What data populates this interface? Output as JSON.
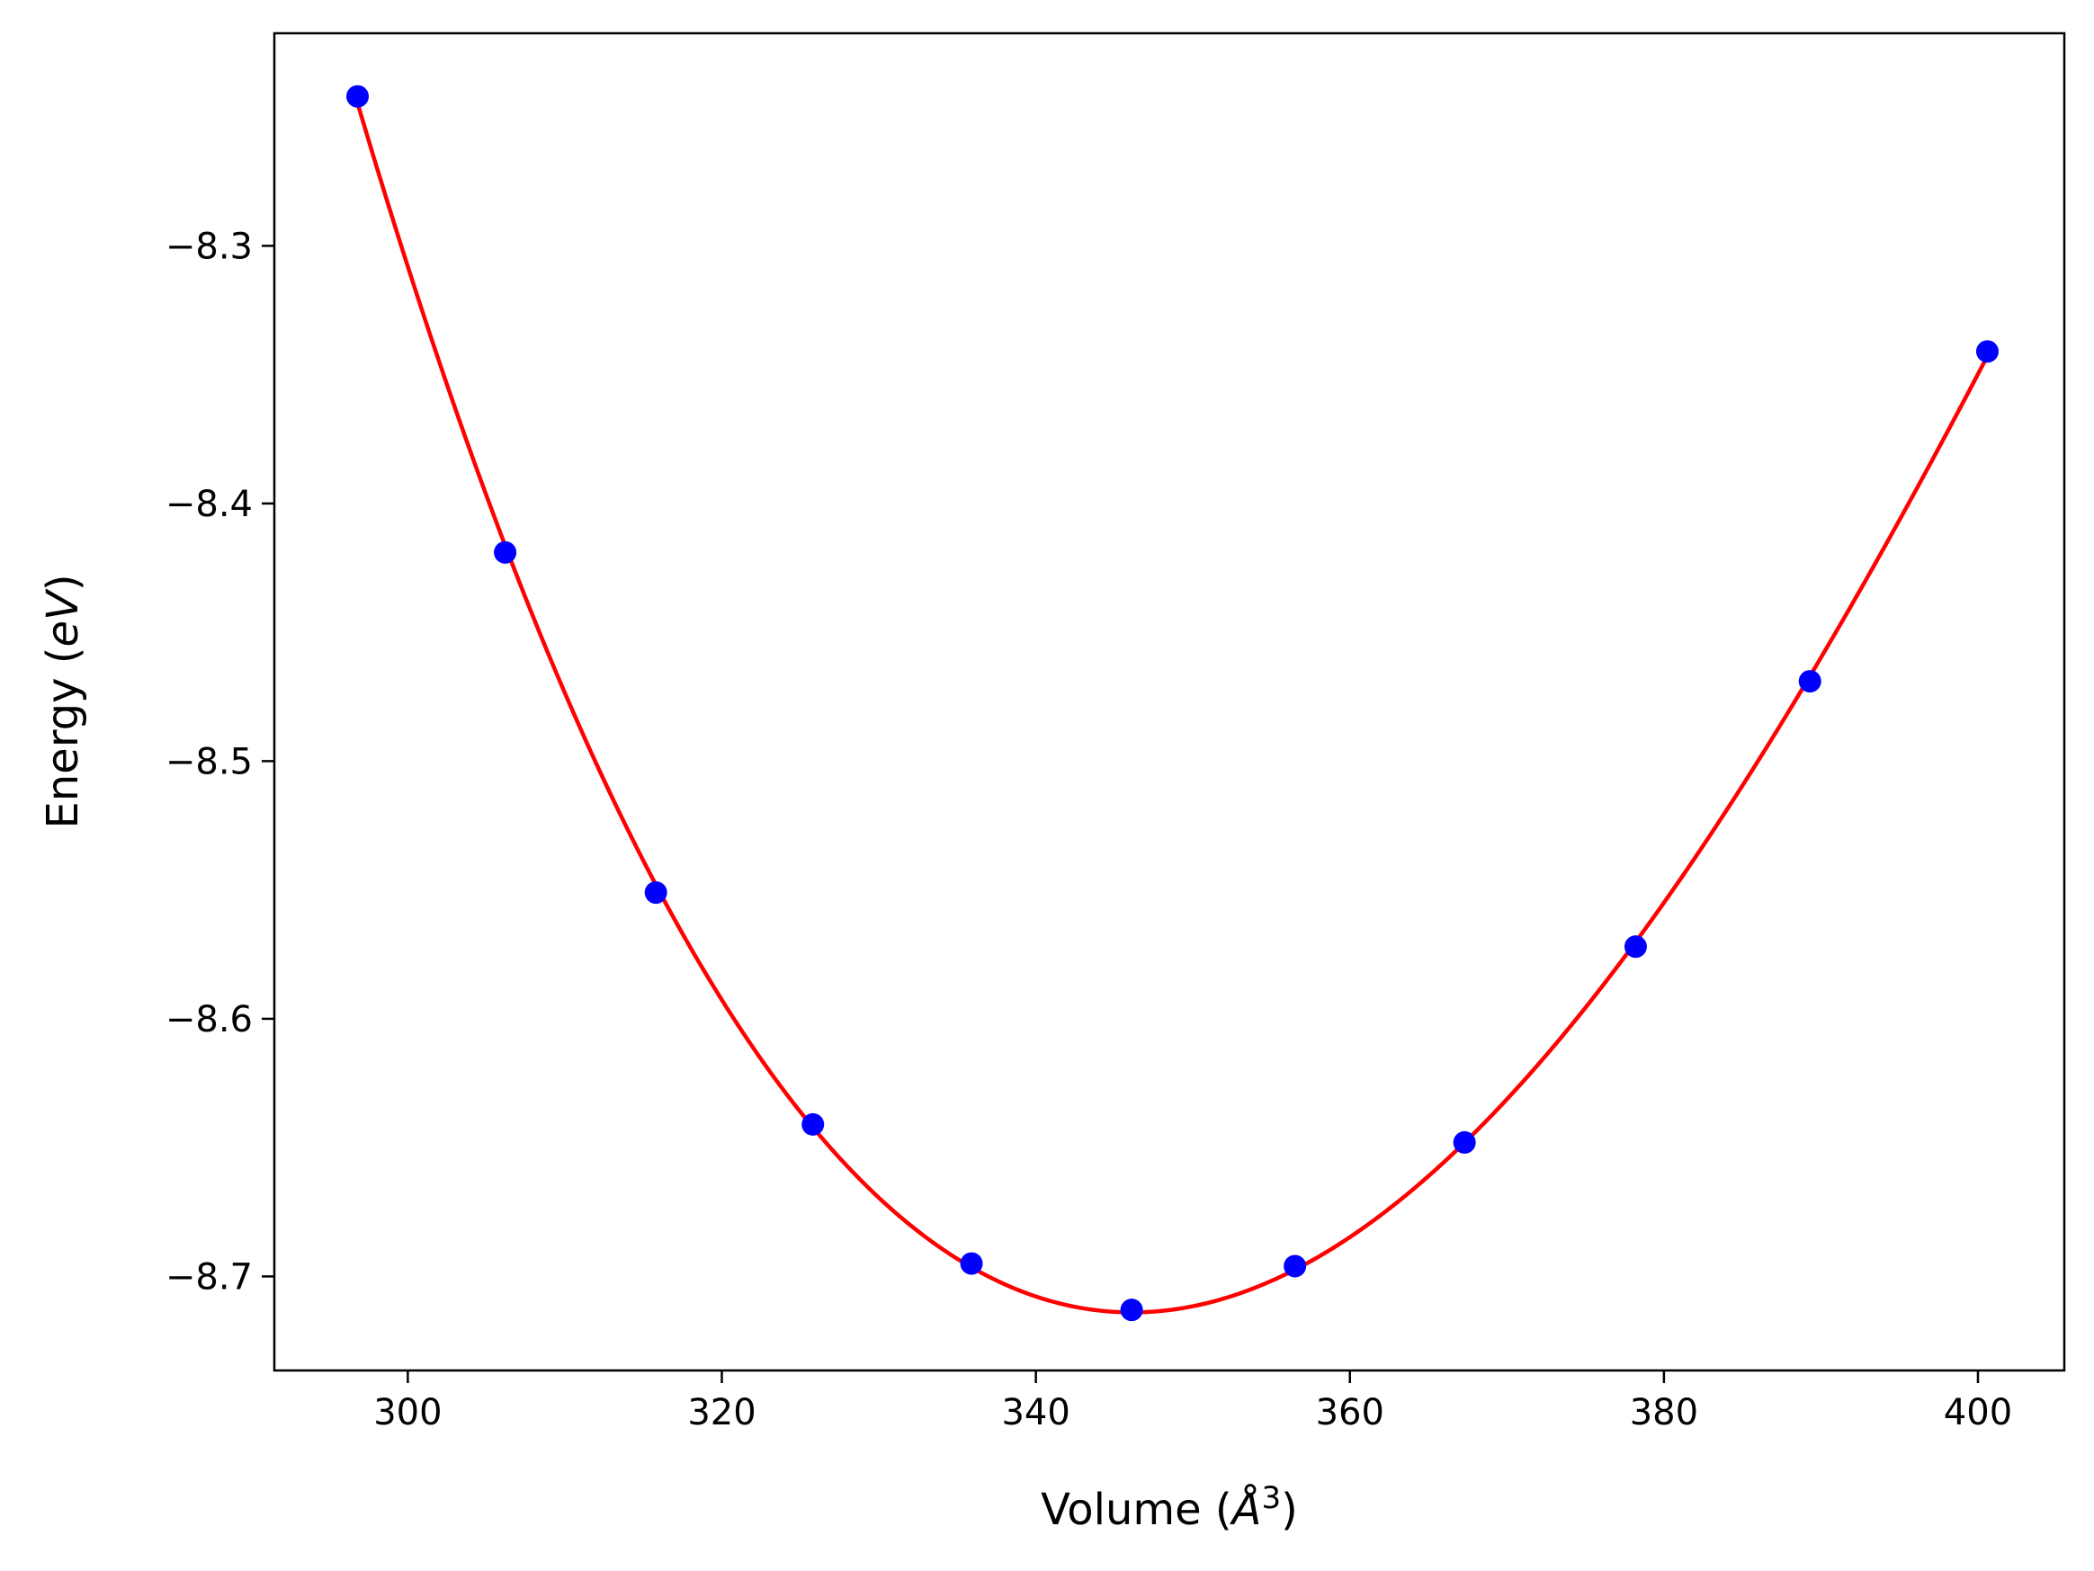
{
  "chart_data": {
    "type": "scatter",
    "title": "",
    "xlabel": {
      "prefix": "Volume (",
      "math": "Å",
      "sup": "3",
      "suffix": ")"
    },
    "ylabel": {
      "prefix": "Energy (",
      "math": "eV",
      "suffix": ")"
    },
    "xlim": [
      291.5,
      405.5
    ],
    "ylim": [
      -8.7365,
      -8.2175
    ],
    "x_ticks": [
      300,
      320,
      340,
      360,
      380,
      400
    ],
    "y_ticks": [
      -8.3,
      -8.4,
      -8.5,
      -8.6,
      -8.7
    ],
    "x_tick_labels": [
      "300",
      "320",
      "340",
      "360",
      "380",
      "400"
    ],
    "y_tick_labels": [
      "−8.3",
      "−8.4",
      "−8.5",
      "−8.6",
      "−8.7"
    ],
    "grid": false,
    "series": [
      {
        "kind": "points",
        "color": "#0000ff",
        "points": [
          {
            "x": 296.8,
            "y": -8.242
          },
          {
            "x": 306.2,
            "y": -8.419
          },
          {
            "x": 315.8,
            "y": -8.551
          },
          {
            "x": 325.8,
            "y": -8.641
          },
          {
            "x": 335.9,
            "y": -8.695
          },
          {
            "x": 346.1,
            "y": -8.713
          },
          {
            "x": 356.5,
            "y": -8.696
          },
          {
            "x": 367.3,
            "y": -8.648
          },
          {
            "x": 378.2,
            "y": -8.572
          },
          {
            "x": 389.3,
            "y": -8.469
          },
          {
            "x": 400.6,
            "y": -8.341
          }
        ]
      },
      {
        "kind": "curve",
        "color": "#ff0000",
        "x_range": [
          296.8,
          400.6
        ]
      }
    ]
  }
}
